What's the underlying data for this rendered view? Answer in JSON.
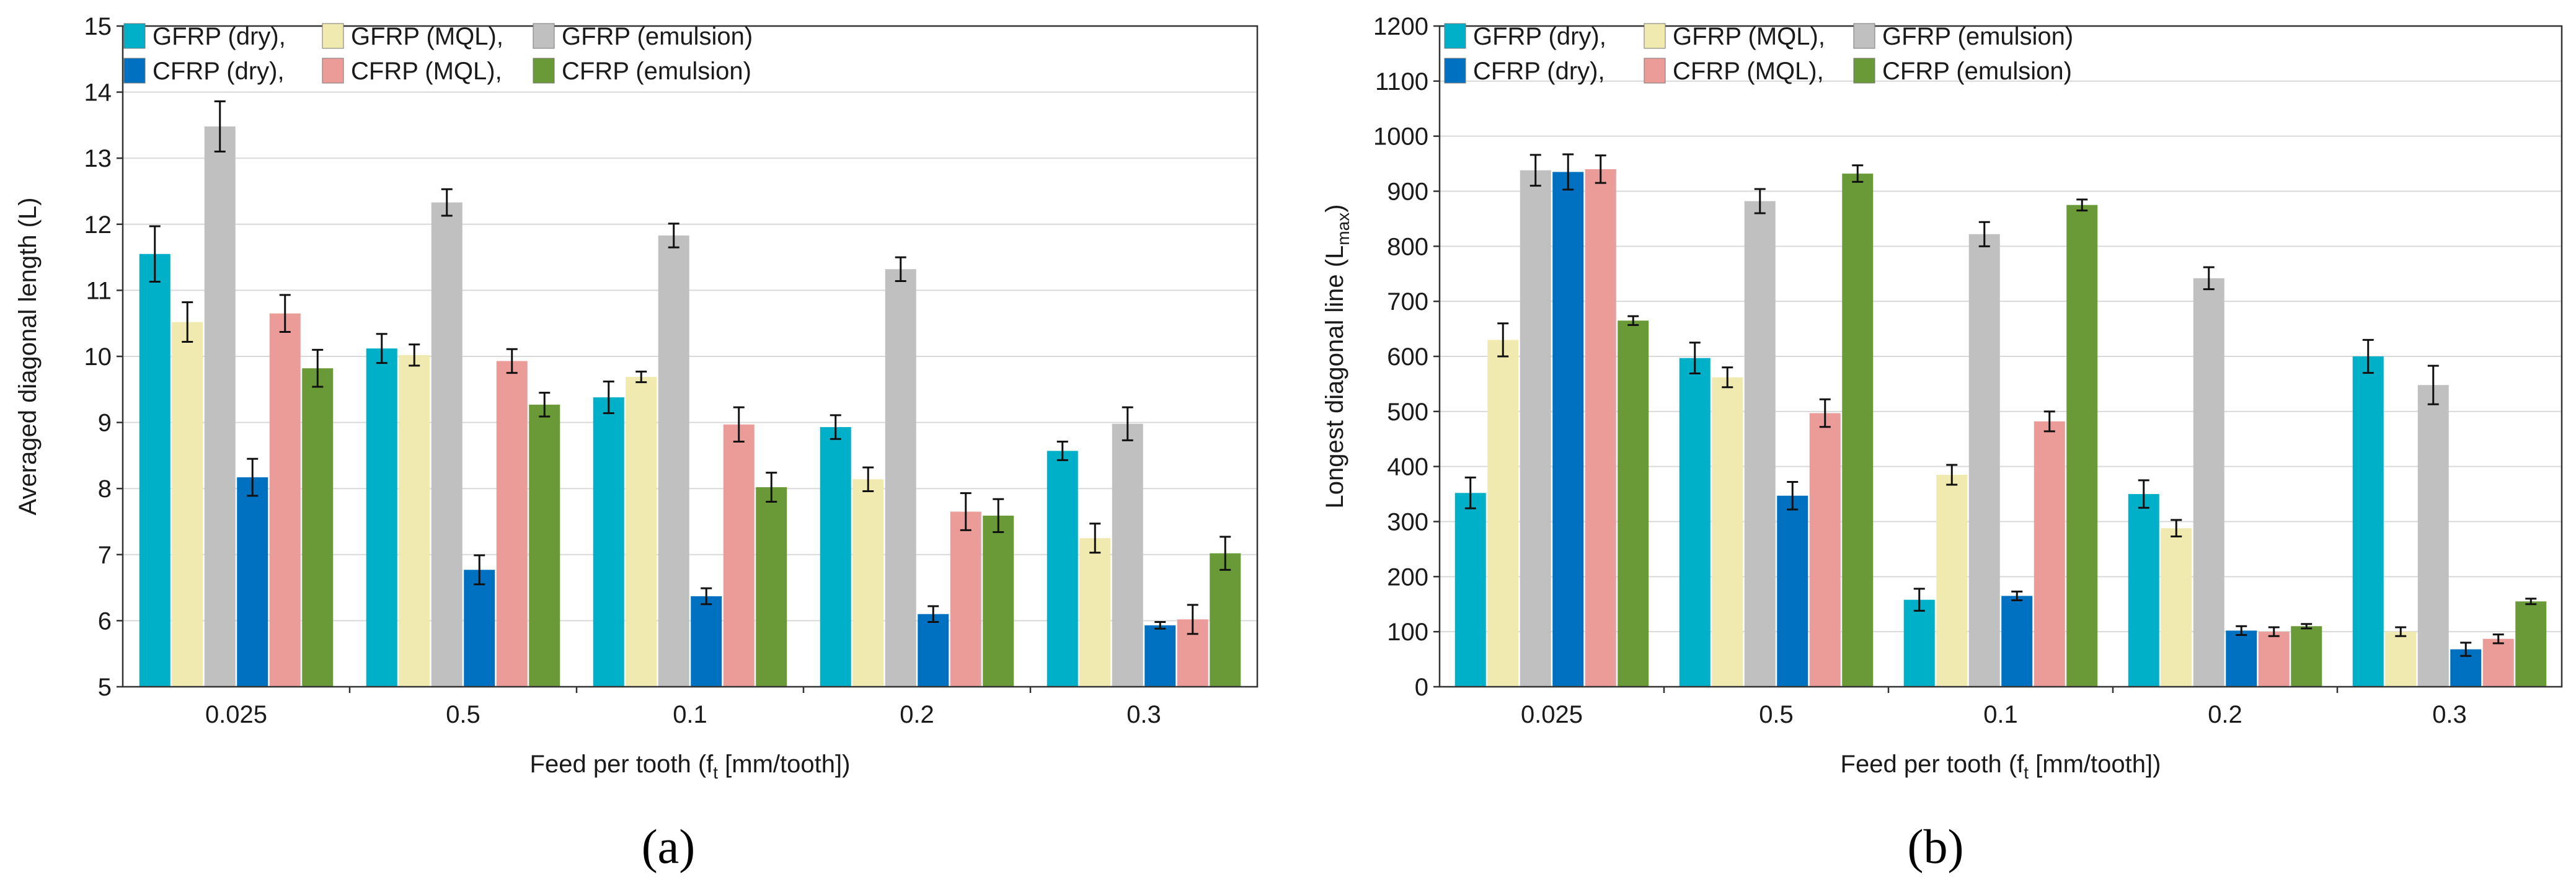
{
  "chart_data": [
    {
      "type": "bar",
      "panel_label": "(a)",
      "xlabel": "Feed per tooth (f",
      "xlabel_sub": "t",
      "xlabel_tail": " [mm/tooth])",
      "ylabel": "Averaged diagonal length (L)",
      "ylim": [
        5,
        15
      ],
      "yticks": [
        5,
        6,
        7,
        8,
        9,
        10,
        11,
        12,
        13,
        14,
        15
      ],
      "categories": [
        "0.025",
        "0.5",
        "0.1",
        "0.2",
        "0.3"
      ],
      "legend": [
        "GFRP (dry),",
        "GFRP (MQL),",
        "GFRP (emulsion)",
        "CFRP (dry),",
        "CFRP (MQL),",
        "CFRP (emulsion)"
      ],
      "series": [
        {
          "name": "GFRP (dry)",
          "color": "#00afc8",
          "values": [
            11.55,
            10.12,
            9.38,
            8.93,
            8.57
          ],
          "errors": [
            0.42,
            0.22,
            0.24,
            0.18,
            0.14
          ]
        },
        {
          "name": "GFRP (MQL)",
          "color": "#f0eab0",
          "values": [
            10.52,
            10.02,
            9.69,
            8.14,
            7.25
          ],
          "errors": [
            0.3,
            0.16,
            0.08,
            0.18,
            0.22
          ]
        },
        {
          "name": "GFRP (emulsion)",
          "color": "#c0c0c0",
          "values": [
            13.48,
            12.33,
            11.83,
            11.32,
            8.98
          ],
          "errors": [
            0.38,
            0.2,
            0.18,
            0.18,
            0.25
          ]
        },
        {
          "name": "CFRP (dry)",
          "color": "#0070c0",
          "values": [
            8.17,
            6.77,
            6.37,
            6.1,
            5.93
          ],
          "errors": [
            0.28,
            0.22,
            0.12,
            0.12,
            0.05
          ]
        },
        {
          "name": "CFRP (MQL)",
          "color": "#ec9c98",
          "values": [
            10.65,
            9.93,
            8.97,
            7.65,
            6.02
          ],
          "errors": [
            0.28,
            0.18,
            0.26,
            0.28,
            0.22
          ]
        },
        {
          "name": "CFRP (emulsion)",
          "color": "#6a9a38",
          "values": [
            9.82,
            9.27,
            8.02,
            7.59,
            7.02
          ],
          "errors": [
            0.28,
            0.18,
            0.22,
            0.25,
            0.25
          ]
        }
      ]
    },
    {
      "type": "bar",
      "panel_label": "(b)",
      "xlabel": "Feed per tooth (f",
      "xlabel_sub": "t",
      "xlabel_tail": " [mm/tooth])",
      "ylabel": "Longest diagonal line (L",
      "ylabel_sub": "max",
      "ylabel_tail": ")",
      "ylim": [
        0,
        1200
      ],
      "yticks": [
        0,
        100,
        200,
        300,
        400,
        500,
        600,
        700,
        800,
        900,
        1000,
        1100,
        1200
      ],
      "categories": [
        "0.025",
        "0.5",
        "0.1",
        "0.2",
        "0.3"
      ],
      "legend": [
        "GFRP (dry),",
        "GFRP (MQL),",
        "GFRP (emulsion)",
        "CFRP (dry),",
        "CFRP (MQL),",
        "CFRP (emulsion)"
      ],
      "series": [
        {
          "name": "GFRP (dry)",
          "color": "#00afc8",
          "values": [
            352,
            597,
            158,
            350,
            600
          ],
          "errors": [
            28,
            28,
            20,
            25,
            30
          ]
        },
        {
          "name": "GFRP (MQL)",
          "color": "#f0eab0",
          "values": [
            630,
            562,
            385,
            288,
            100
          ],
          "errors": [
            30,
            18,
            18,
            15,
            8
          ]
        },
        {
          "name": "GFRP (emulsion)",
          "color": "#c0c0c0",
          "values": [
            938,
            882,
            822,
            742,
            548
          ],
          "errors": [
            28,
            22,
            22,
            20,
            35
          ]
        },
        {
          "name": "CFRP (dry)",
          "color": "#0070c0",
          "values": [
            935,
            347,
            165,
            102,
            68
          ],
          "errors": [
            32,
            25,
            8,
            8,
            12
          ]
        },
        {
          "name": "CFRP (MQL)",
          "color": "#ec9c98",
          "values": [
            940,
            497,
            482,
            100,
            87
          ],
          "errors": [
            25,
            25,
            18,
            8,
            8
          ]
        },
        {
          "name": "CFRP (emulsion)",
          "color": "#6a9a38",
          "values": [
            665,
            932,
            875,
            110,
            155
          ],
          "errors": [
            8,
            15,
            10,
            4,
            5
          ]
        }
      ]
    }
  ]
}
